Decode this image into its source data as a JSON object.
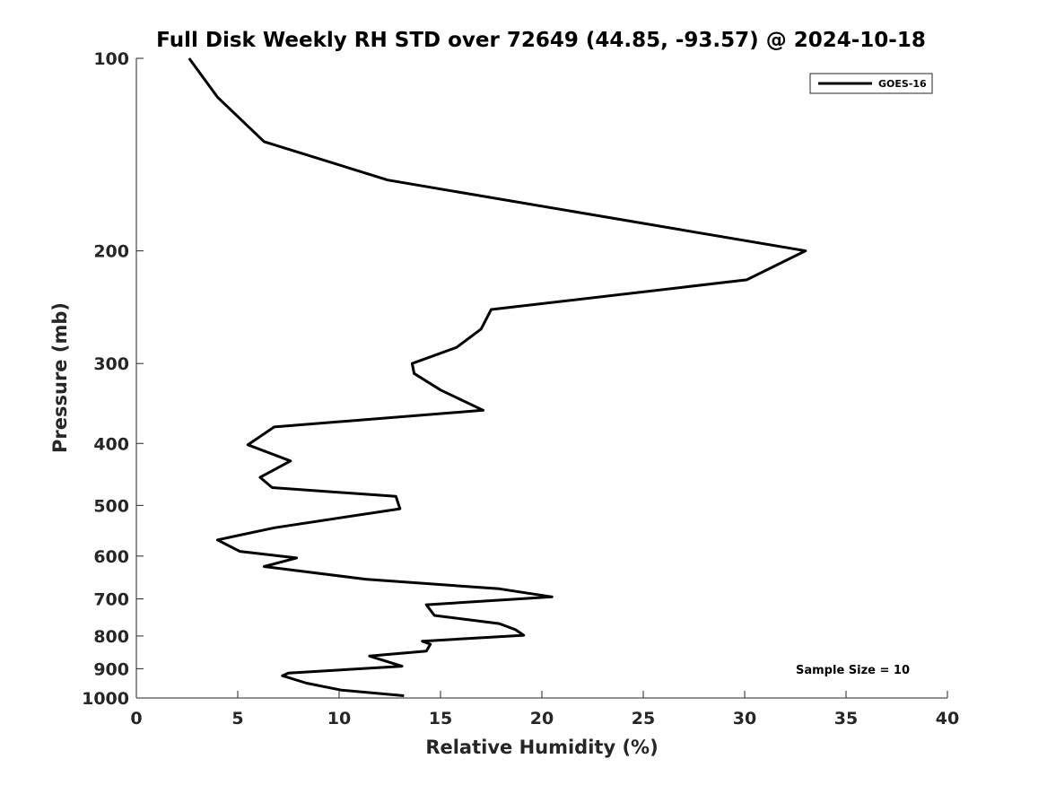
{
  "chart_data": {
    "type": "line",
    "title": "Full Disk Weekly RH STD over 72649 (44.85, -93.57) @ 2024-10-18",
    "xlabel": "Relative Humidity (%)",
    "ylabel": "Pressure (mb)",
    "xlim": [
      0,
      40
    ],
    "ylim": [
      100,
      1000
    ],
    "y_scale": "log",
    "y_reversed": true,
    "x_ticks": [
      0,
      5,
      10,
      15,
      20,
      25,
      30,
      35,
      40
    ],
    "y_ticks": [
      100,
      200,
      300,
      400,
      500,
      600,
      700,
      800,
      900,
      1000
    ],
    "legend_position": "top-right",
    "annotation": "Sample Size = 10",
    "series": [
      {
        "name": "GOES-16",
        "color": "#000000",
        "x": [
          2.6,
          4.0,
          6.3,
          12.4,
          33.0,
          30.1,
          17.5,
          17.0,
          15.8,
          13.6,
          13.7,
          15.0,
          17.1,
          6.8,
          5.5,
          7.6,
          6.1,
          6.7,
          12.8,
          13.0,
          6.8,
          4.0,
          5.1,
          7.9,
          6.3,
          11.3,
          17.9,
          20.5,
          14.3,
          14.7,
          17.9,
          18.7,
          19.1,
          14.1,
          14.5,
          14.3,
          11.5,
          13.1,
          7.5,
          7.2,
          8.4,
          10.1,
          13.2
        ],
        "y": [
          100,
          115,
          135,
          155,
          200,
          222,
          247,
          265,
          283,
          300,
          311,
          330,
          355,
          377,
          402,
          426,
          452,
          469,
          484,
          506,
          542,
          566,
          590,
          604,
          623,
          652,
          675,
          695,
          715,
          743,
          765,
          782,
          798,
          815,
          824,
          845,
          860,
          892,
          914,
          923,
          948,
          972,
          992
        ]
      }
    ]
  }
}
